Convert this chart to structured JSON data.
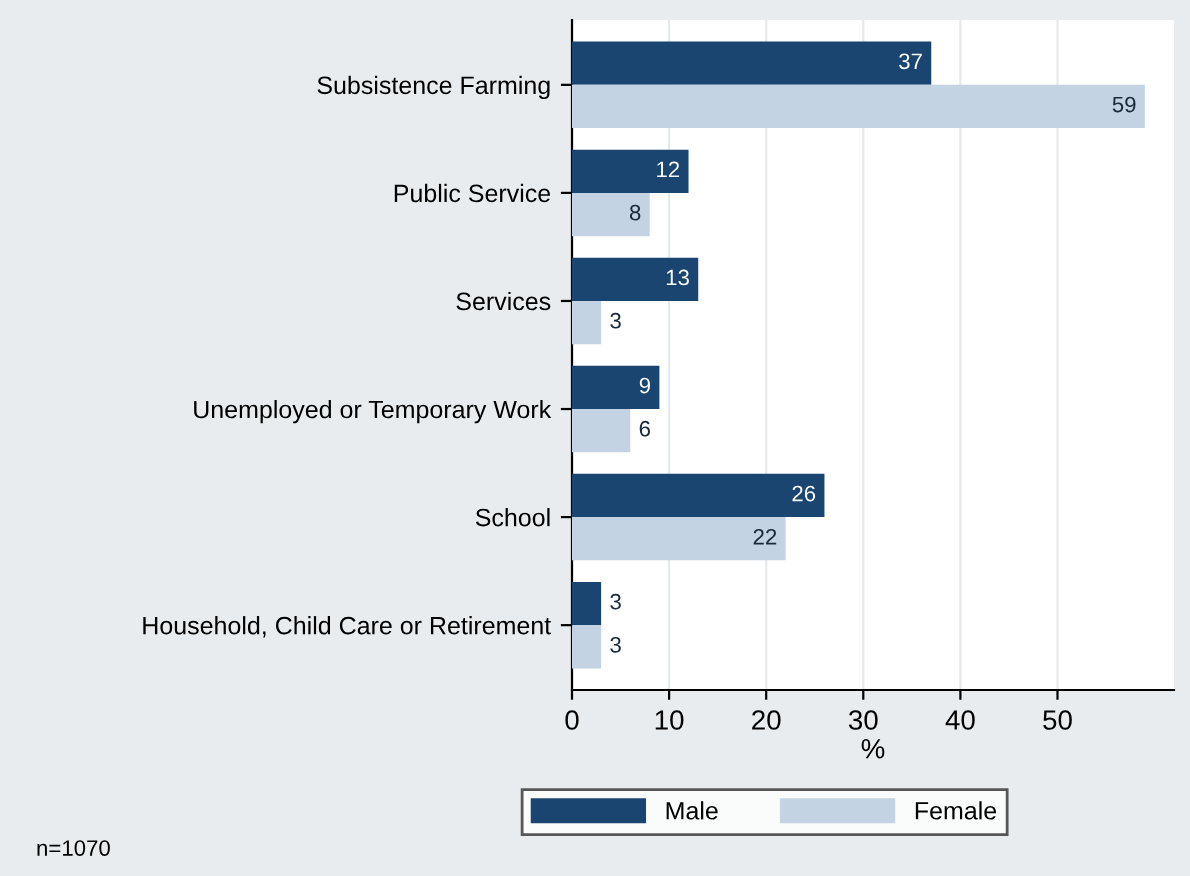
{
  "chart_data": {
    "type": "bar",
    "orientation": "horizontal",
    "xlabel": "%",
    "categories": [
      "Subsistence Farming",
      "Public Service",
      "Services",
      "Unemployed or Temporary Work",
      "School",
      "Household, Child Care or Retirement"
    ],
    "series": [
      {
        "name": "Male",
        "color": "#1a4570",
        "values": [
          37,
          12,
          13,
          9,
          26,
          3
        ]
      },
      {
        "name": "Female",
        "color": "#c3d3e4",
        "values": [
          59,
          8,
          3,
          6,
          22,
          3
        ]
      }
    ],
    "xlim": [
      0,
      62
    ],
    "xticks": [
      0,
      10,
      20,
      30,
      40,
      50
    ],
    "grid": "x",
    "legend": "bottom",
    "data_labels": true,
    "annotations": [
      "n=1070"
    ]
  }
}
